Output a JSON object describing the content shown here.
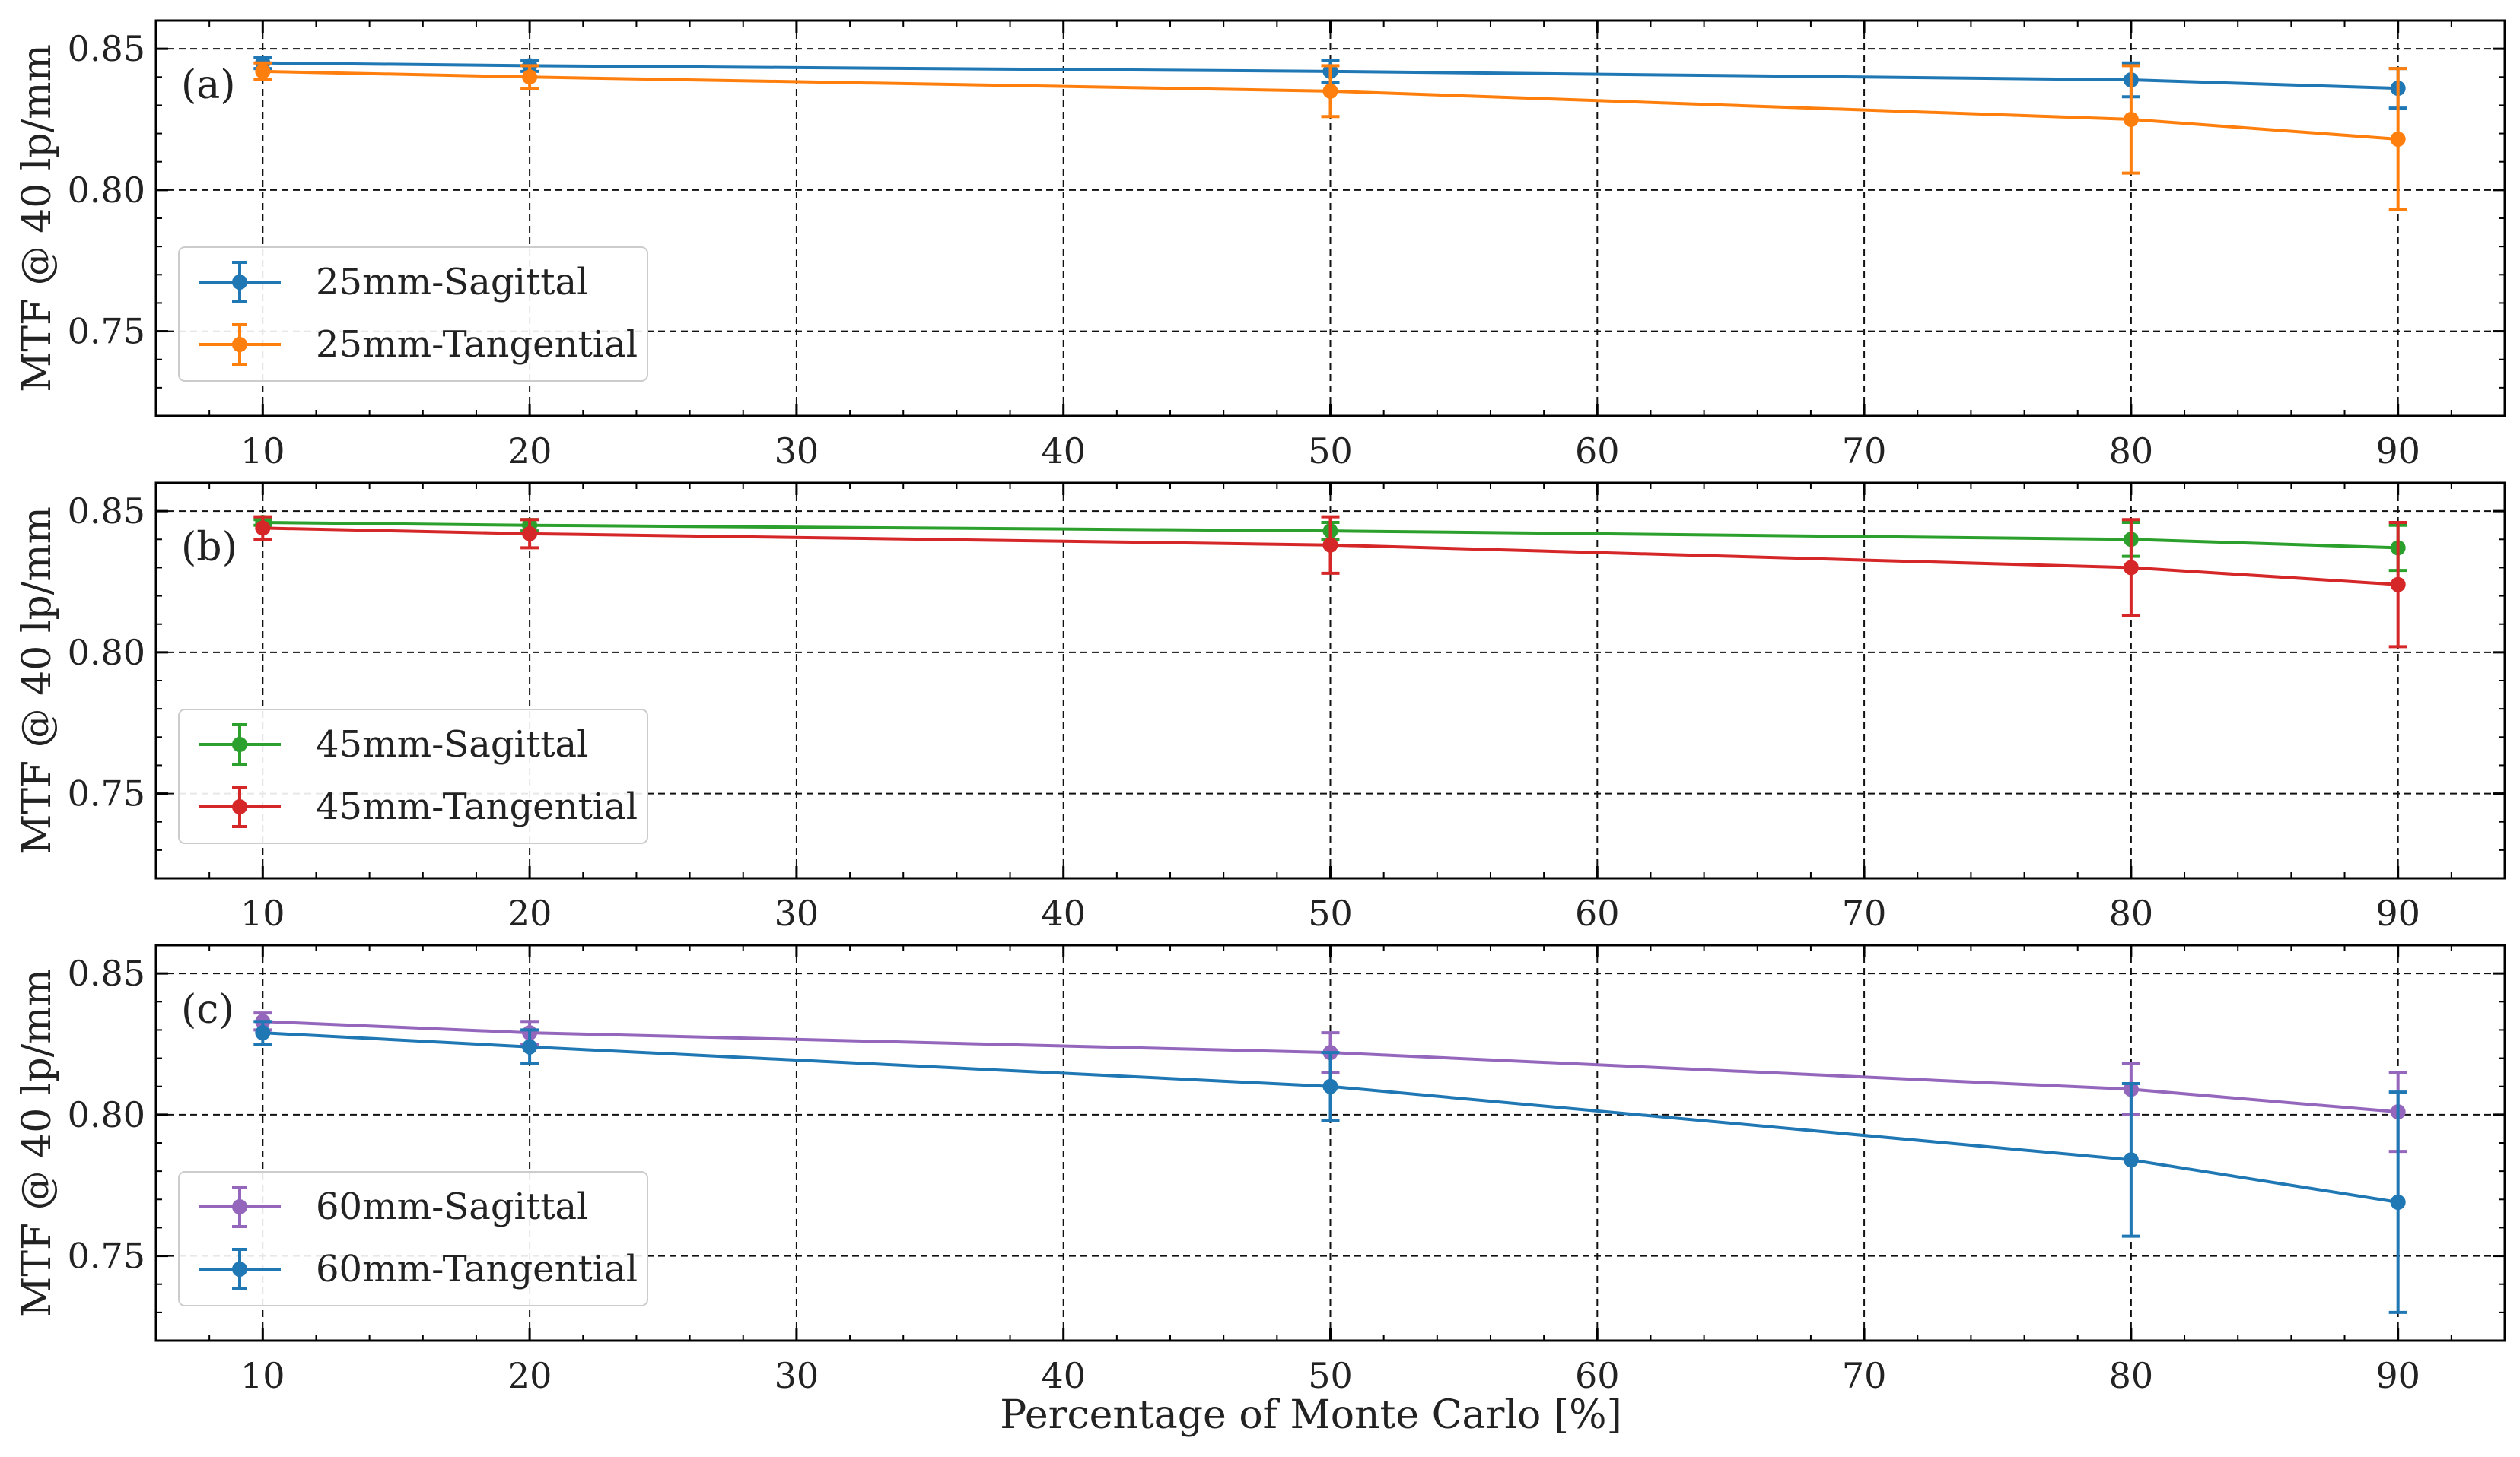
{
  "chart_data": [
    {
      "type": "line",
      "panel_label": "(a)",
      "ylabel": "MTF @ 40 lp/mm",
      "xlabel": "",
      "x": [
        10,
        20,
        50,
        80,
        90
      ],
      "xlim": [
        6,
        94
      ],
      "ylim": [
        0.72,
        0.86
      ],
      "xticks": [
        "10",
        "20",
        "30",
        "40",
        "50",
        "60",
        "70",
        "80",
        "90"
      ],
      "yticks": [
        "0.75",
        "0.80",
        "0.85"
      ],
      "grid": true,
      "legend_position": "lower-left",
      "series": [
        {
          "name": "25mm-Sagittal",
          "color": "#1f77b4",
          "values": [
            0.845,
            0.844,
            0.842,
            0.839,
            0.836
          ],
          "errors": [
            0.002,
            0.002,
            0.004,
            0.006,
            0.007
          ]
        },
        {
          "name": "25mm-Tangential",
          "color": "#ff7f0e",
          "values": [
            0.842,
            0.84,
            0.835,
            0.825,
            0.818
          ],
          "errors": [
            0.003,
            0.004,
            0.009,
            0.019,
            0.025
          ]
        }
      ]
    },
    {
      "type": "line",
      "panel_label": "(b)",
      "ylabel": "MTF @ 40 lp/mm",
      "xlabel": "",
      "x": [
        10,
        20,
        50,
        80,
        90
      ],
      "xlim": [
        6,
        94
      ],
      "ylim": [
        0.72,
        0.86
      ],
      "xticks": [
        "10",
        "20",
        "30",
        "40",
        "50",
        "60",
        "70",
        "80",
        "90"
      ],
      "yticks": [
        "0.75",
        "0.80",
        "0.85"
      ],
      "grid": true,
      "legend_position": "lower-left",
      "series": [
        {
          "name": "45mm-Sagittal",
          "color": "#2ca02c",
          "values": [
            0.846,
            0.845,
            0.843,
            0.84,
            0.837
          ],
          "errors": [
            0.001,
            0.002,
            0.003,
            0.006,
            0.008
          ]
        },
        {
          "name": "45mm-Tangential",
          "color": "#d62728",
          "values": [
            0.844,
            0.842,
            0.838,
            0.83,
            0.824
          ],
          "errors": [
            0.004,
            0.005,
            0.01,
            0.017,
            0.022
          ]
        }
      ]
    },
    {
      "type": "line",
      "panel_label": "(c)",
      "ylabel": "MTF @ 40 lp/mm",
      "xlabel": "Percentage of Monte Carlo [%]",
      "x": [
        10,
        20,
        50,
        80,
        90
      ],
      "xlim": [
        6,
        94
      ],
      "ylim": [
        0.72,
        0.86
      ],
      "xticks": [
        "10",
        "20",
        "30",
        "40",
        "50",
        "60",
        "70",
        "80",
        "90"
      ],
      "yticks": [
        "0.75",
        "0.80",
        "0.85"
      ],
      "grid": true,
      "legend_position": "lower-left",
      "series": [
        {
          "name": "60mm-Sagittal",
          "color": "#9467bd",
          "values": [
            0.833,
            0.829,
            0.822,
            0.809,
            0.801
          ],
          "errors": [
            0.003,
            0.004,
            0.007,
            0.009,
            0.014
          ]
        },
        {
          "name": "60mm-Tangential",
          "color": "#1f77b4",
          "values": [
            0.829,
            0.824,
            0.81,
            0.784,
            0.769
          ],
          "errors": [
            0.004,
            0.006,
            0.012,
            0.027,
            0.039
          ]
        }
      ]
    }
  ]
}
